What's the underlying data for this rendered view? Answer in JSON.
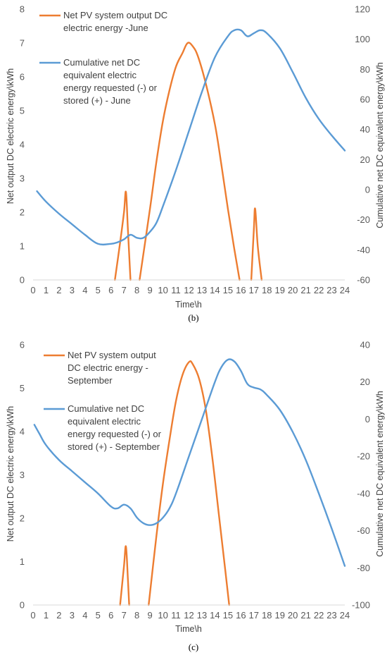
{
  "chart_data": [
    {
      "type": "line",
      "caption": "(b)",
      "xlabel": "Time\\h",
      "ylabel": "Net output DC electric energy\\kWh",
      "y2label": "Cumulative net DC equivalent energy\\kWh",
      "xlim": [
        0,
        24
      ],
      "ylim": [
        0,
        8
      ],
      "y2lim": [
        -60,
        120
      ],
      "x_ticks": [
        0,
        1,
        2,
        3,
        4,
        5,
        6,
        7,
        8,
        9,
        10,
        11,
        12,
        13,
        14,
        15,
        16,
        17,
        18,
        19,
        20,
        21,
        22,
        23,
        24
      ],
      "y_ticks": [
        0,
        1,
        2,
        3,
        4,
        5,
        6,
        7,
        8
      ],
      "y2_ticks": [
        -60,
        -40,
        -20,
        0,
        20,
        40,
        60,
        80,
        100,
        120
      ],
      "legend_position": "top-left",
      "colors": {
        "pv": "#ED7D31",
        "cumulative": "#5B9BD5"
      },
      "series": [
        {
          "name": "Net PV system output DC electric energy -June",
          "axis": "left",
          "color": "#ED7D31",
          "segments": [
            {
              "x": [
                6.3,
                6.7,
                7.0,
                7.15,
                7.3,
                7.5
              ],
              "y": [
                0,
                1.1,
                2.0,
                2.6,
                1.5,
                0
              ]
            },
            {
              "x": [
                8.2,
                9.0,
                9.5,
                10.0,
                10.5,
                11.0,
                11.5,
                11.9,
                12.3,
                12.7,
                13.3,
                14.0,
                14.5,
                15.0,
                15.5,
                15.9
              ],
              "y": [
                0,
                2.1,
                3.5,
                4.7,
                5.6,
                6.3,
                6.7,
                7.0,
                6.9,
                6.6,
                5.8,
                4.6,
                3.4,
                2.1,
                0.9,
                0
              ]
            },
            {
              "x": [
                16.8,
                17.0,
                17.1,
                17.3,
                17.6
              ],
              "y": [
                0,
                1.5,
                2.1,
                1.0,
                0
              ]
            }
          ]
        },
        {
          "name": "Cumulative net DC equivalent electric energy requested (-) or stored (+) - June",
          "axis": "right",
          "color": "#5B9BD5",
          "x": [
            0.3,
            1,
            2,
            3,
            4,
            5,
            6,
            6.5,
            7,
            7.5,
            8,
            8.5,
            9,
            9.5,
            10,
            11,
            12,
            13,
            14,
            15,
            15.5,
            16,
            16.5,
            17,
            17.5,
            18,
            19,
            20,
            21,
            22,
            23,
            24
          ],
          "y": [
            -1,
            -8,
            -16,
            -23,
            -30,
            -36,
            -36,
            -35,
            -33,
            -30,
            -32,
            -32,
            -28,
            -22,
            -11,
            13,
            39,
            65,
            88,
            102,
            106,
            106,
            102,
            104,
            106,
            104,
            94,
            78,
            61,
            47,
            36,
            26
          ]
        }
      ]
    },
    {
      "type": "line",
      "caption": "(c)",
      "xlabel": "Time\\h",
      "ylabel": "Net output DC electric energy\\kWh",
      "y2label": "Cumulative net DC equivalent energy\\kWh",
      "xlim": [
        0,
        24
      ],
      "ylim": [
        0,
        6
      ],
      "y2lim": [
        -100,
        40
      ],
      "x_ticks": [
        0,
        1,
        2,
        3,
        4,
        5,
        6,
        7,
        8,
        9,
        10,
        11,
        12,
        13,
        14,
        15,
        16,
        17,
        18,
        19,
        20,
        21,
        22,
        23,
        24
      ],
      "y_ticks": [
        0,
        1,
        2,
        3,
        4,
        5,
        6
      ],
      "y2_ticks": [
        -100,
        -80,
        -60,
        -40,
        -20,
        0,
        20,
        40
      ],
      "legend_position": "top-left",
      "colors": {
        "pv": "#ED7D31",
        "cumulative": "#5B9BD5"
      },
      "series": [
        {
          "name": "Net PV system output DC electric energy - September",
          "axis": "left",
          "color": "#ED7D31",
          "segments": [
            {
              "x": [
                6.7,
                7.0,
                7.15,
                7.3,
                7.4
              ],
              "y": [
                0,
                0.9,
                1.35,
                0.6,
                0
              ]
            },
            {
              "x": [
                8.9,
                9.5,
                10.0,
                10.5,
                11.0,
                11.5,
                12.0,
                12.3,
                12.8,
                13.3,
                13.8,
                14.3,
                14.8,
                15.1
              ],
              "y": [
                0,
                1.6,
                2.8,
                3.8,
                4.7,
                5.3,
                5.6,
                5.55,
                5.2,
                4.5,
                3.4,
                2.1,
                0.8,
                0
              ]
            }
          ]
        },
        {
          "name": "Cumulative net DC equivalent electric energy requested (-) or stored (+) - September",
          "axis": "right",
          "color": "#5B9BD5",
          "x": [
            0.1,
            0.5,
            1,
            2,
            3,
            4,
            5,
            6,
            6.5,
            7,
            7.5,
            8,
            8.5,
            9,
            9.5,
            10,
            10.5,
            11,
            12,
            13,
            14,
            14.5,
            15,
            15.5,
            16,
            16.5,
            17,
            17.5,
            18,
            19,
            20,
            21,
            22,
            23,
            24
          ],
          "y": [
            -3,
            -8,
            -14,
            -22,
            -28,
            -34,
            -40,
            -47,
            -48,
            -46,
            -48,
            -53,
            -56,
            -57,
            -56,
            -53,
            -48,
            -40,
            -20,
            0,
            20,
            28,
            32,
            31,
            26,
            19,
            17,
            16,
            13,
            5,
            -7,
            -22,
            -40,
            -59,
            -79
          ]
        }
      ]
    }
  ]
}
